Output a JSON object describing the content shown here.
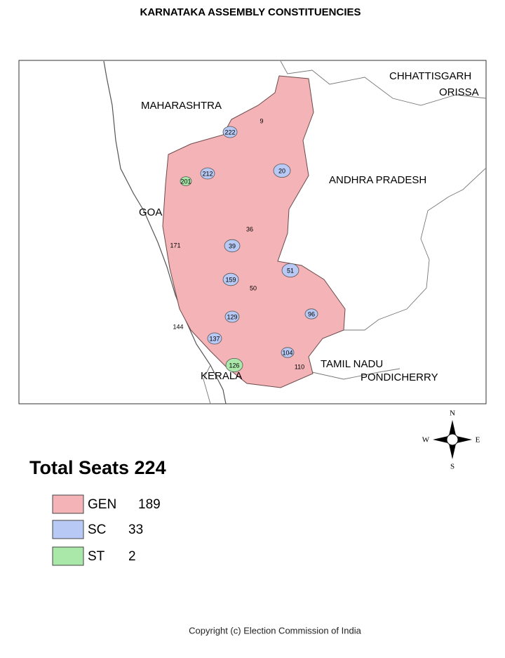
{
  "title": "KARNATAKA ASSEMBLY CONSTITUENCIES",
  "map": {
    "regions": [
      {
        "label": "MAHARASHTRA"
      },
      {
        "label": "CHHATTISGARH"
      },
      {
        "label": "ORISSA"
      },
      {
        "label": "ANDHRA PRADESH"
      },
      {
        "label": "GOA"
      },
      {
        "label": "KERALA"
      },
      {
        "label": "TAMIL NADU"
      },
      {
        "label": "PONDICHERRY"
      }
    ],
    "constituencies": [
      {
        "label": "222",
        "category": "SC"
      },
      {
        "label": "20",
        "category": "SC"
      },
      {
        "label": "201",
        "category": "ST"
      },
      {
        "label": "51",
        "category": "SC"
      },
      {
        "label": "159",
        "category": "SC"
      },
      {
        "label": "137",
        "category": "SC"
      },
      {
        "label": "126",
        "category": "ST"
      },
      {
        "label": "110",
        "category": "GEN"
      },
      {
        "label": "36",
        "category": "GEN"
      },
      {
        "label": "50",
        "category": "GEN"
      },
      {
        "label": "9",
        "category": "GEN"
      },
      {
        "label": "129",
        "category": "SC"
      },
      {
        "label": "96",
        "category": "SC"
      },
      {
        "label": "104",
        "category": "SC"
      },
      {
        "label": "144",
        "category": "GEN"
      },
      {
        "label": "171",
        "category": "GEN"
      },
      {
        "label": "212",
        "category": "SC"
      },
      {
        "label": "39",
        "category": "SC"
      }
    ]
  },
  "compass": {
    "n": "N",
    "e": "E",
    "s": "S",
    "w": "W"
  },
  "legend": {
    "title": "Total Seats 224",
    "items": [
      {
        "name": "GEN",
        "count": 189,
        "color": "#f4b3b6"
      },
      {
        "name": "SC",
        "count": 33,
        "color": "#b7c9f4"
      },
      {
        "name": "ST",
        "count": 2,
        "color": "#a9e8a9"
      }
    ]
  },
  "copyright": "Copyright (c) Election Commission of India"
}
